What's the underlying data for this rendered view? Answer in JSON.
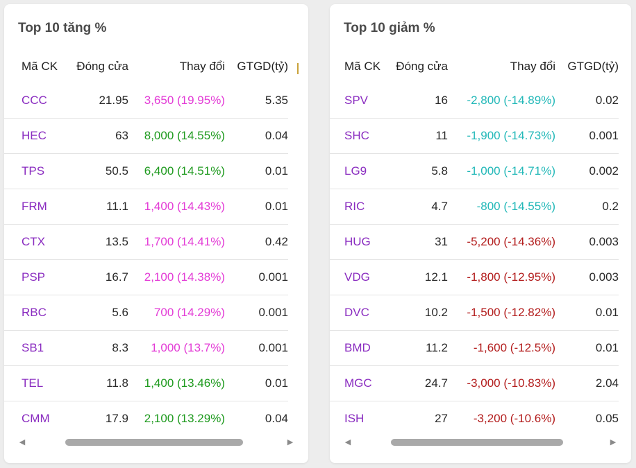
{
  "gainers": {
    "title": "Top 10 tăng %",
    "headers": {
      "symbol": "Mã CK",
      "close": "Đóng cửa",
      "change": "Thay đổi",
      "value": "GTGD(tỷ)"
    },
    "rows": [
      {
        "symbol": "CCC",
        "close": "21.95",
        "change": "3,650 (19.95%)",
        "value": "5.35",
        "color": "#e33bd6"
      },
      {
        "symbol": "HEC",
        "close": "63",
        "change": "8,000 (14.55%)",
        "value": "0.04",
        "color": "#1e9a1e"
      },
      {
        "symbol": "TPS",
        "close": "50.5",
        "change": "6,400 (14.51%)",
        "value": "0.01",
        "color": "#1e9a1e"
      },
      {
        "symbol": "FRM",
        "close": "11.1",
        "change": "1,400 (14.43%)",
        "value": "0.01",
        "color": "#e33bd6"
      },
      {
        "symbol": "CTX",
        "close": "13.5",
        "change": "1,700 (14.41%)",
        "value": "0.42",
        "color": "#e33bd6"
      },
      {
        "symbol": "PSP",
        "close": "16.7",
        "change": "2,100 (14.38%)",
        "value": "0.001",
        "color": "#e33bd6"
      },
      {
        "symbol": "RBC",
        "close": "5.6",
        "change": "700 (14.29%)",
        "value": "0.001",
        "color": "#e33bd6"
      },
      {
        "symbol": "SB1",
        "close": "8.3",
        "change": "1,000 (13.7%)",
        "value": "0.001",
        "color": "#e33bd6"
      },
      {
        "symbol": "TEL",
        "close": "11.8",
        "change": "1,400 (13.46%)",
        "value": "0.01",
        "color": "#1e9a1e"
      },
      {
        "symbol": "CMM",
        "close": "17.9",
        "change": "2,100 (13.29%)",
        "value": "0.04",
        "color": "#1e9a1e"
      }
    ]
  },
  "losers": {
    "title": "Top 10 giảm %",
    "headers": {
      "symbol": "Mã CK",
      "close": "Đóng cửa",
      "change": "Thay đổi",
      "value": "GTGD(tỷ)"
    },
    "rows": [
      {
        "symbol": "SPV",
        "close": "16",
        "change": "-2,800 (-14.89%)",
        "value": "0.02",
        "color": "#22b8b8"
      },
      {
        "symbol": "SHC",
        "close": "11",
        "change": "-1,900 (-14.73%)",
        "value": "0.001",
        "color": "#22b8b8"
      },
      {
        "symbol": "LG9",
        "close": "5.8",
        "change": "-1,000 (-14.71%)",
        "value": "0.002",
        "color": "#22b8b8"
      },
      {
        "symbol": "RIC",
        "close": "4.7",
        "change": "-800 (-14.55%)",
        "value": "0.2",
        "color": "#22b8b8"
      },
      {
        "symbol": "HUG",
        "close": "31",
        "change": "-5,200 (-14.36%)",
        "value": "0.003",
        "color": "#b31d1d"
      },
      {
        "symbol": "VDG",
        "close": "12.1",
        "change": "-1,800 (-12.95%)",
        "value": "0.003",
        "color": "#b31d1d"
      },
      {
        "symbol": "DVC",
        "close": "10.2",
        "change": "-1,500 (-12.82%)",
        "value": "0.01",
        "color": "#b31d1d"
      },
      {
        "symbol": "BMD",
        "close": "11.2",
        "change": "-1,600 (-12.5%)",
        "value": "0.01",
        "color": "#b31d1d"
      },
      {
        "symbol": "MGC",
        "close": "24.7",
        "change": "-3,000 (-10.83%)",
        "value": "2.04",
        "color": "#b31d1d"
      },
      {
        "symbol": "ISH",
        "close": "27",
        "change": "-3,200 (-10.6%)",
        "value": "0.05",
        "color": "#b31d1d"
      }
    ]
  },
  "icons": {
    "scroll_left": "caret-left-icon",
    "scroll_right": "caret-right-icon"
  }
}
